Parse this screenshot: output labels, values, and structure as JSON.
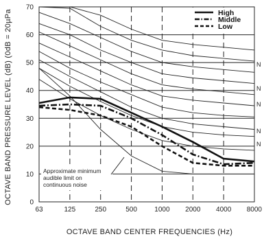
{
  "chart_data": {
    "type": "line",
    "xlabel": "OCTAVE BAND CENTER FREQUENCIES (Hz)",
    "ylabel": "OCTAVE BAND PRESSURE LEVEL (dB) (0dB = 20µPa",
    "x": [
      63,
      125,
      250,
      500,
      1000,
      2000,
      4000,
      8000
    ],
    "x_tick_labels": [
      "63",
      "125",
      "250",
      "500",
      "1000",
      "2000",
      "4000",
      "8000"
    ],
    "x_scale": "log2",
    "ylim": [
      0,
      70
    ],
    "y_ticks": [
      0,
      10,
      20,
      30,
      40,
      50,
      60,
      70
    ],
    "grid": "horizontal solid every 10 dB, vertical dashed at each octave band",
    "legend": {
      "position": "top-right",
      "entries": [
        {
          "label": "High",
          "style": "solid"
        },
        {
          "label": "Middle",
          "style": "dash-dot"
        },
        {
          "label": "Low",
          "style": "dashed"
        }
      ]
    },
    "series": [
      {
        "name": "High",
        "style": "solid",
        "values": [
          35.5,
          37.5,
          37,
          32,
          27,
          21.5,
          15.5,
          14.5
        ]
      },
      {
        "name": "Middle",
        "style": "dash-dot",
        "values": [
          34.5,
          35,
          34.5,
          30,
          24,
          17,
          13.5,
          14
        ]
      },
      {
        "name": "Low",
        "style": "dashed",
        "values": [
          34,
          33,
          31,
          27,
          20,
          14,
          13,
          13
        ]
      }
    ],
    "nc_curves": [
      [
        70,
        70,
        67,
        62,
        58,
        56.5,
        55.5,
        54.5
      ],
      [
        70,
        69.5,
        63,
        58,
        54.5,
        52.5,
        51.5,
        50.5
      ],
      [
        68,
        64,
        59,
        54,
        50,
        48.5,
        47.5,
        46.5
      ],
      [
        64,
        60,
        54.5,
        50,
        46,
        44.5,
        43.5,
        42.5
      ],
      [
        61,
        56,
        51,
        46,
        42,
        40.5,
        39.5,
        38.5
      ],
      [
        57,
        52,
        47,
        42,
        38,
        36.5,
        35.5,
        34.5
      ],
      [
        54,
        48,
        43,
        38.5,
        34,
        32,
        31,
        30.5
      ],
      [
        51,
        45,
        39.5,
        34,
        30,
        28,
        27,
        26
      ],
      [
        48,
        41.5,
        36,
        31,
        27,
        25,
        24,
        23.5
      ],
      [
        44,
        37,
        31,
        26,
        22,
        20,
        19,
        18.5
      ]
    ],
    "audible_limit_curve": [
      48,
      38,
      26,
      16.5,
      11,
      10,
      10,
      10
    ],
    "nc_labels": [
      "N",
      "N",
      "N",
      "N",
      "N"
    ],
    "annotation": [
      "Approximate minimum",
      "audible limit on",
      "continuous noise"
    ]
  }
}
